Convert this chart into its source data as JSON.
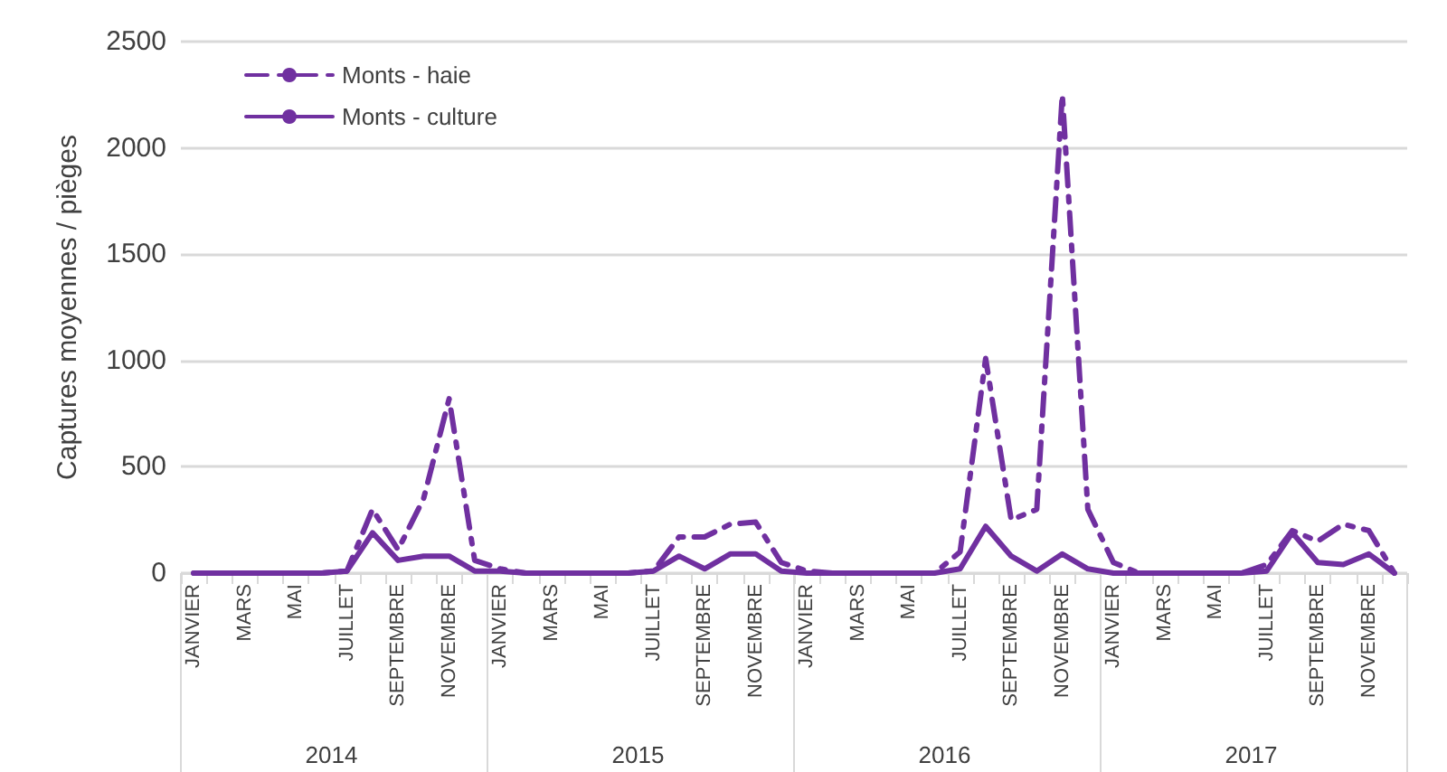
{
  "chart_data": {
    "type": "line",
    "ylabel": "Captures moyennes / pièges",
    "categories": [
      "JANVIER",
      null,
      "MARS",
      null,
      "MAI",
      null,
      "JUILLET",
      null,
      "SEPTEMBRE",
      null,
      "NOVEMBRE",
      null,
      "JANVIER",
      null,
      "MARS",
      null,
      "MAI",
      null,
      "JUILLET",
      null,
      "SEPTEMBRE",
      null,
      "NOVEMBRE",
      null,
      "JANVIER",
      null,
      "MARS",
      null,
      "MAI",
      null,
      "JUILLET",
      null,
      "SEPTEMBRE",
      null,
      "NOVEMBRE",
      null,
      "JANVIER",
      null,
      "MARS",
      null,
      "MAI",
      null,
      "JUILLET",
      null,
      "SEPTEMBRE",
      null,
      "NOVEMBRE",
      null
    ],
    "series": [
      {
        "name": "Monts - haie",
        "color": "#7030a0",
        "line_style": "dashed",
        "values": [
          0,
          0,
          0,
          0,
          0,
          0,
          10,
          300,
          110,
          350,
          820,
          60,
          20,
          0,
          0,
          0,
          0,
          0,
          10,
          170,
          170,
          230,
          240,
          50,
          10,
          0,
          0,
          0,
          0,
          0,
          100,
          1010,
          250,
          300,
          2250,
          300,
          50,
          0,
          0,
          0,
          0,
          0,
          40,
          200,
          150,
          230,
          200,
          0
        ]
      },
      {
        "name": "Monts - culture",
        "color": "#7030a0",
        "line_style": "solid",
        "values": [
          0,
          0,
          0,
          0,
          0,
          0,
          10,
          190,
          60,
          80,
          80,
          10,
          10,
          0,
          0,
          0,
          0,
          0,
          10,
          80,
          20,
          90,
          90,
          10,
          0,
          0,
          0,
          0,
          0,
          0,
          20,
          220,
          80,
          10,
          90,
          20,
          0,
          0,
          0,
          0,
          0,
          0,
          10,
          190,
          50,
          40,
          90,
          0
        ]
      }
    ],
    "ylim": [
      0,
      2500
    ],
    "yticks": [
      0,
      500,
      1000,
      1500,
      2000,
      2500
    ],
    "grid": "y",
    "legend": "top left",
    "marker": "none",
    "annotations": [
      "2014",
      "2015",
      "2016",
      "2017"
    ]
  }
}
